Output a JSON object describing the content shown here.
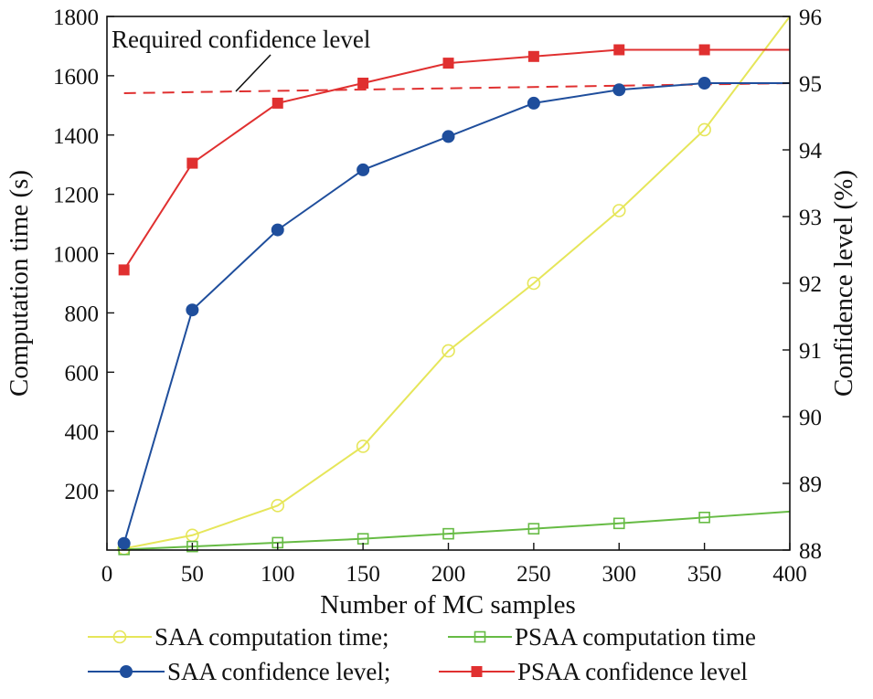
{
  "chart_data": {
    "type": "line",
    "xlabel": "Number of MC samples",
    "ylabel_left": "Computation time (s)",
    "ylabel_right": "Confidence level (%)",
    "xlim": [
      0,
      400
    ],
    "ylim_left": [
      0,
      1800
    ],
    "ylim_right": [
      88,
      96
    ],
    "xticks": [
      0,
      50,
      100,
      150,
      200,
      250,
      300,
      350,
      400
    ],
    "yticks_left": [
      200,
      400,
      600,
      800,
      1000,
      1200,
      1400,
      1600,
      1800
    ],
    "yticks_right": [
      88,
      89,
      90,
      91,
      92,
      93,
      94,
      95,
      96
    ],
    "grid": false,
    "legend_position": "bottom",
    "series": [
      {
        "name": "SAA computation time;",
        "axis": "left",
        "color": "#e6e65a",
        "marker": "circle-open",
        "x": [
          10,
          50,
          100,
          150,
          200,
          250,
          300,
          350,
          400
        ],
        "values": [
          5,
          50,
          150,
          350,
          672,
          900,
          1145,
          1418,
          1800
        ],
        "marker_x": [
          10,
          50,
          100,
          150,
          200,
          250,
          300,
          350
        ]
      },
      {
        "name": "PSAA computation time",
        "axis": "left",
        "color": "#66bb44",
        "marker": "square-open",
        "x": [
          10,
          50,
          100,
          150,
          200,
          250,
          300,
          350,
          400
        ],
        "values": [
          2,
          12,
          25,
          38,
          55,
          72,
          90,
          110,
          130
        ],
        "marker_x": [
          10,
          50,
          100,
          150,
          200,
          250,
          300,
          350
        ]
      },
      {
        "name": "SAA confidence level;",
        "axis": "right",
        "color": "#1f4e9c",
        "marker": "circle-filled",
        "x": [
          10,
          50,
          100,
          150,
          200,
          250,
          300,
          350,
          400
        ],
        "values": [
          88.1,
          91.6,
          92.8,
          93.7,
          94.2,
          94.7,
          94.9,
          95.0,
          95.0
        ],
        "marker_x": [
          10,
          50,
          100,
          150,
          200,
          250,
          300,
          350
        ]
      },
      {
        "name": "PSAA confidence level",
        "axis": "right",
        "color": "#e03030",
        "marker": "square-filled",
        "x": [
          10,
          50,
          100,
          150,
          200,
          250,
          300,
          350,
          400
        ],
        "values": [
          92.2,
          93.8,
          94.7,
          95.0,
          95.3,
          95.4,
          95.5,
          95.5,
          95.5
        ],
        "marker_x": [
          10,
          50,
          100,
          150,
          200,
          250,
          300,
          350
        ]
      }
    ],
    "reference_line": {
      "label": "Required confidence level",
      "axis": "right",
      "color": "#e03030",
      "style": "dashed",
      "x": [
        10,
        400
      ],
      "values": [
        94.85,
        95.0
      ]
    }
  }
}
